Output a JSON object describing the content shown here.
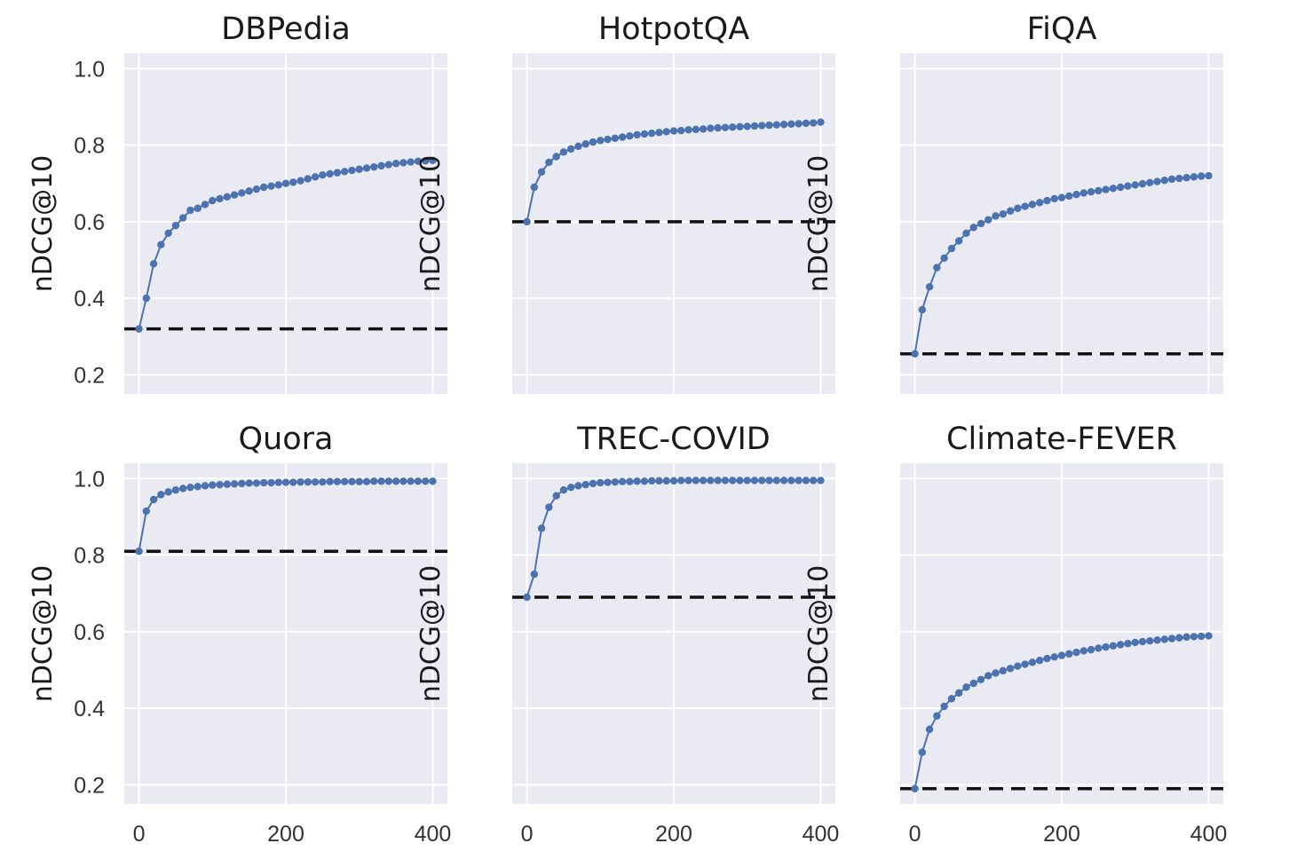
{
  "chart_data": [
    {
      "type": "line",
      "title": "DBPedia",
      "xlabel": "",
      "ylabel": "nDCG@10",
      "xlim": [
        -20,
        420
      ],
      "ylim": [
        0.15,
        1.04
      ],
      "xticks": [
        0,
        200,
        400
      ],
      "xtick_labels": [],
      "yticks": [
        0.2,
        0.4,
        0.6,
        0.8,
        1.0
      ],
      "ytick_labels": [
        "0.2",
        "0.4",
        "0.6",
        "0.8",
        "1.0"
      ],
      "grid": true,
      "baseline": 0.32,
      "series": [
        {
          "name": "nDCG@10",
          "color": "#4c72b0",
          "values": [
            0.32,
            0.4,
            0.49,
            0.54,
            0.57,
            0.59,
            0.61,
            0.63,
            0.635,
            0.645,
            0.655,
            0.66,
            0.665,
            0.67,
            0.675,
            0.68,
            0.685,
            0.69,
            0.693,
            0.696,
            0.7,
            0.703,
            0.707,
            0.712,
            0.717,
            0.722,
            0.725,
            0.728,
            0.731,
            0.734,
            0.737,
            0.74,
            0.743,
            0.746,
            0.749,
            0.752,
            0.754,
            0.756,
            0.758,
            0.759,
            0.76
          ]
        }
      ]
    },
    {
      "type": "line",
      "title": "HotpotQA",
      "xlabel": "",
      "ylabel": "nDCG@10",
      "xlim": [
        -20,
        420
      ],
      "ylim": [
        0.15,
        1.04
      ],
      "xticks": [
        0,
        200,
        400
      ],
      "xtick_labels": [],
      "yticks": [
        0.2,
        0.4,
        0.6,
        0.8,
        1.0
      ],
      "ytick_labels": [],
      "grid": true,
      "baseline": 0.6,
      "series": [
        {
          "name": "nDCG@10",
          "color": "#4c72b0",
          "values": [
            0.6,
            0.69,
            0.73,
            0.755,
            0.77,
            0.782,
            0.79,
            0.797,
            0.803,
            0.808,
            0.812,
            0.815,
            0.818,
            0.821,
            0.824,
            0.827,
            0.829,
            0.831,
            0.833,
            0.835,
            0.837,
            0.838,
            0.84,
            0.841,
            0.842,
            0.844,
            0.845,
            0.846,
            0.847,
            0.848,
            0.849,
            0.85,
            0.851,
            0.852,
            0.853,
            0.854,
            0.855,
            0.856,
            0.857,
            0.858,
            0.86
          ]
        }
      ]
    },
    {
      "type": "line",
      "title": "FiQA",
      "xlabel": "",
      "ylabel": "nDCG@10",
      "xlim": [
        -20,
        420
      ],
      "ylim": [
        0.15,
        1.04
      ],
      "xticks": [
        0,
        200,
        400
      ],
      "xtick_labels": [],
      "yticks": [
        0.2,
        0.4,
        0.6,
        0.8,
        1.0
      ],
      "ytick_labels": [],
      "grid": true,
      "baseline": 0.255,
      "series": [
        {
          "name": "nDCG@10",
          "color": "#4c72b0",
          "values": [
            0.255,
            0.37,
            0.43,
            0.48,
            0.505,
            0.53,
            0.55,
            0.57,
            0.585,
            0.595,
            0.605,
            0.615,
            0.62,
            0.628,
            0.635,
            0.64,
            0.645,
            0.65,
            0.655,
            0.66,
            0.663,
            0.667,
            0.671,
            0.675,
            0.678,
            0.681,
            0.684,
            0.687,
            0.69,
            0.693,
            0.696,
            0.699,
            0.702,
            0.705,
            0.708,
            0.711,
            0.713,
            0.715,
            0.717,
            0.719,
            0.72
          ]
        }
      ]
    },
    {
      "type": "line",
      "title": "Quora",
      "xlabel": "",
      "ylabel": "nDCG@10",
      "xlim": [
        -20,
        420
      ],
      "ylim": [
        0.15,
        1.04
      ],
      "xticks": [
        0,
        200,
        400
      ],
      "xtick_labels": [
        "0",
        "200",
        "400"
      ],
      "yticks": [
        0.2,
        0.4,
        0.6,
        0.8,
        1.0
      ],
      "ytick_labels": [
        "0.2",
        "0.4",
        "0.6",
        "0.8",
        "1.0"
      ],
      "grid": true,
      "baseline": 0.81,
      "series": [
        {
          "name": "nDCG@10",
          "color": "#4c72b0",
          "values": [
            0.81,
            0.915,
            0.945,
            0.958,
            0.965,
            0.97,
            0.974,
            0.977,
            0.979,
            0.981,
            0.983,
            0.984,
            0.985,
            0.986,
            0.987,
            0.988,
            0.988,
            0.989,
            0.989,
            0.99,
            0.99,
            0.99,
            0.991,
            0.991,
            0.991,
            0.991,
            0.992,
            0.992,
            0.992,
            0.992,
            0.992,
            0.992,
            0.993,
            0.993,
            0.993,
            0.993,
            0.993,
            0.993,
            0.993,
            0.993,
            0.993
          ]
        }
      ]
    },
    {
      "type": "line",
      "title": "TREC-COVID",
      "xlabel": "",
      "ylabel": "nDCG@10",
      "xlim": [
        -20,
        420
      ],
      "ylim": [
        0.15,
        1.04
      ],
      "xticks": [
        0,
        200,
        400
      ],
      "xtick_labels": [
        "0",
        "200",
        "400"
      ],
      "yticks": [
        0.2,
        0.4,
        0.6,
        0.8,
        1.0
      ],
      "ytick_labels": [],
      "grid": true,
      "baseline": 0.69,
      "series": [
        {
          "name": "nDCG@10",
          "color": "#4c72b0",
          "values": [
            0.69,
            0.75,
            0.87,
            0.925,
            0.955,
            0.97,
            0.977,
            0.981,
            0.984,
            0.987,
            0.989,
            0.99,
            0.991,
            0.992,
            0.992,
            0.993,
            0.993,
            0.994,
            0.994,
            0.994,
            0.994,
            0.995,
            0.995,
            0.995,
            0.995,
            0.995,
            0.995,
            0.995,
            0.995,
            0.995,
            0.995,
            0.995,
            0.995,
            0.995,
            0.995,
            0.995,
            0.995,
            0.995,
            0.995,
            0.995,
            0.995
          ]
        }
      ]
    },
    {
      "type": "line",
      "title": "Climate-FEVER",
      "xlabel": "",
      "ylabel": "nDCG@10",
      "xlim": [
        -20,
        420
      ],
      "ylim": [
        0.15,
        1.04
      ],
      "xticks": [
        0,
        200,
        400
      ],
      "xtick_labels": [
        "0",
        "200",
        "400"
      ],
      "yticks": [
        0.2,
        0.4,
        0.6,
        0.8,
        1.0
      ],
      "ytick_labels": [],
      "grid": true,
      "baseline": 0.19,
      "series": [
        {
          "name": "nDCG@10",
          "color": "#4c72b0",
          "values": [
            0.19,
            0.285,
            0.345,
            0.38,
            0.405,
            0.425,
            0.44,
            0.455,
            0.465,
            0.475,
            0.485,
            0.492,
            0.498,
            0.504,
            0.51,
            0.515,
            0.52,
            0.525,
            0.53,
            0.534,
            0.538,
            0.542,
            0.546,
            0.55,
            0.553,
            0.557,
            0.56,
            0.563,
            0.566,
            0.569,
            0.572,
            0.574,
            0.576,
            0.578,
            0.58,
            0.582,
            0.584,
            0.586,
            0.587,
            0.588,
            0.589
          ]
        }
      ]
    }
  ]
}
